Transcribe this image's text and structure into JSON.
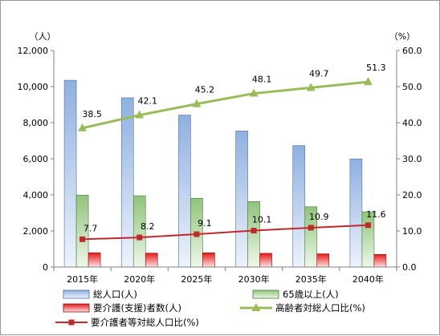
{
  "chart_data": {
    "type": "bar",
    "categories": [
      "2015年",
      "2020年",
      "2025年",
      "2030年",
      "2035年",
      "2040年"
    ],
    "y_left": {
      "unit": "（人）",
      "range": [
        0,
        12000
      ],
      "ticks": [
        "0",
        "2,000",
        "4,000",
        "6,000",
        "8,000",
        "10,000",
        "12,000"
      ]
    },
    "y_right": {
      "unit": "（%）",
      "range": [
        0,
        60
      ],
      "ticks": [
        "0.0",
        "10.0",
        "20.0",
        "30.0",
        "40.0",
        "50.0",
        "60.0"
      ]
    },
    "grid": false,
    "legend_position": "bottom",
    "series": [
      {
        "name": "総人口(人)",
        "kind": "bar",
        "axis": "left",
        "color": "#9dbbe6",
        "values": [
          10350,
          9380,
          8420,
          7540,
          6730,
          5990
        ]
      },
      {
        "name": "65歳以上(人)",
        "kind": "bar",
        "axis": "left",
        "color": "#9fce8a",
        "values": [
          3990,
          3950,
          3810,
          3630,
          3340,
          3060
        ]
      },
      {
        "name": "要介護(支援)者数(人)",
        "kind": "bar",
        "axis": "left",
        "color": "#e02020",
        "values": [
          790,
          770,
          790,
          760,
          730,
          700
        ]
      },
      {
        "name": "高齢者対総人口比(%)",
        "kind": "line",
        "axis": "right",
        "color": "#9bbb59",
        "values": [
          38.5,
          42.1,
          45.2,
          48.1,
          49.7,
          51.3
        ],
        "labels": [
          "38.5",
          "42.1",
          "45.2",
          "48.1",
          "49.7",
          "51.3"
        ]
      },
      {
        "name": "要介護者等対総人口比(%)",
        "kind": "line",
        "axis": "right",
        "color": "#c0282d",
        "values": [
          7.7,
          8.2,
          9.1,
          10.1,
          10.9,
          11.6
        ],
        "labels": [
          "7.7",
          "8.2",
          "9.1",
          "10.1",
          "10.9",
          "11.6"
        ]
      }
    ]
  }
}
